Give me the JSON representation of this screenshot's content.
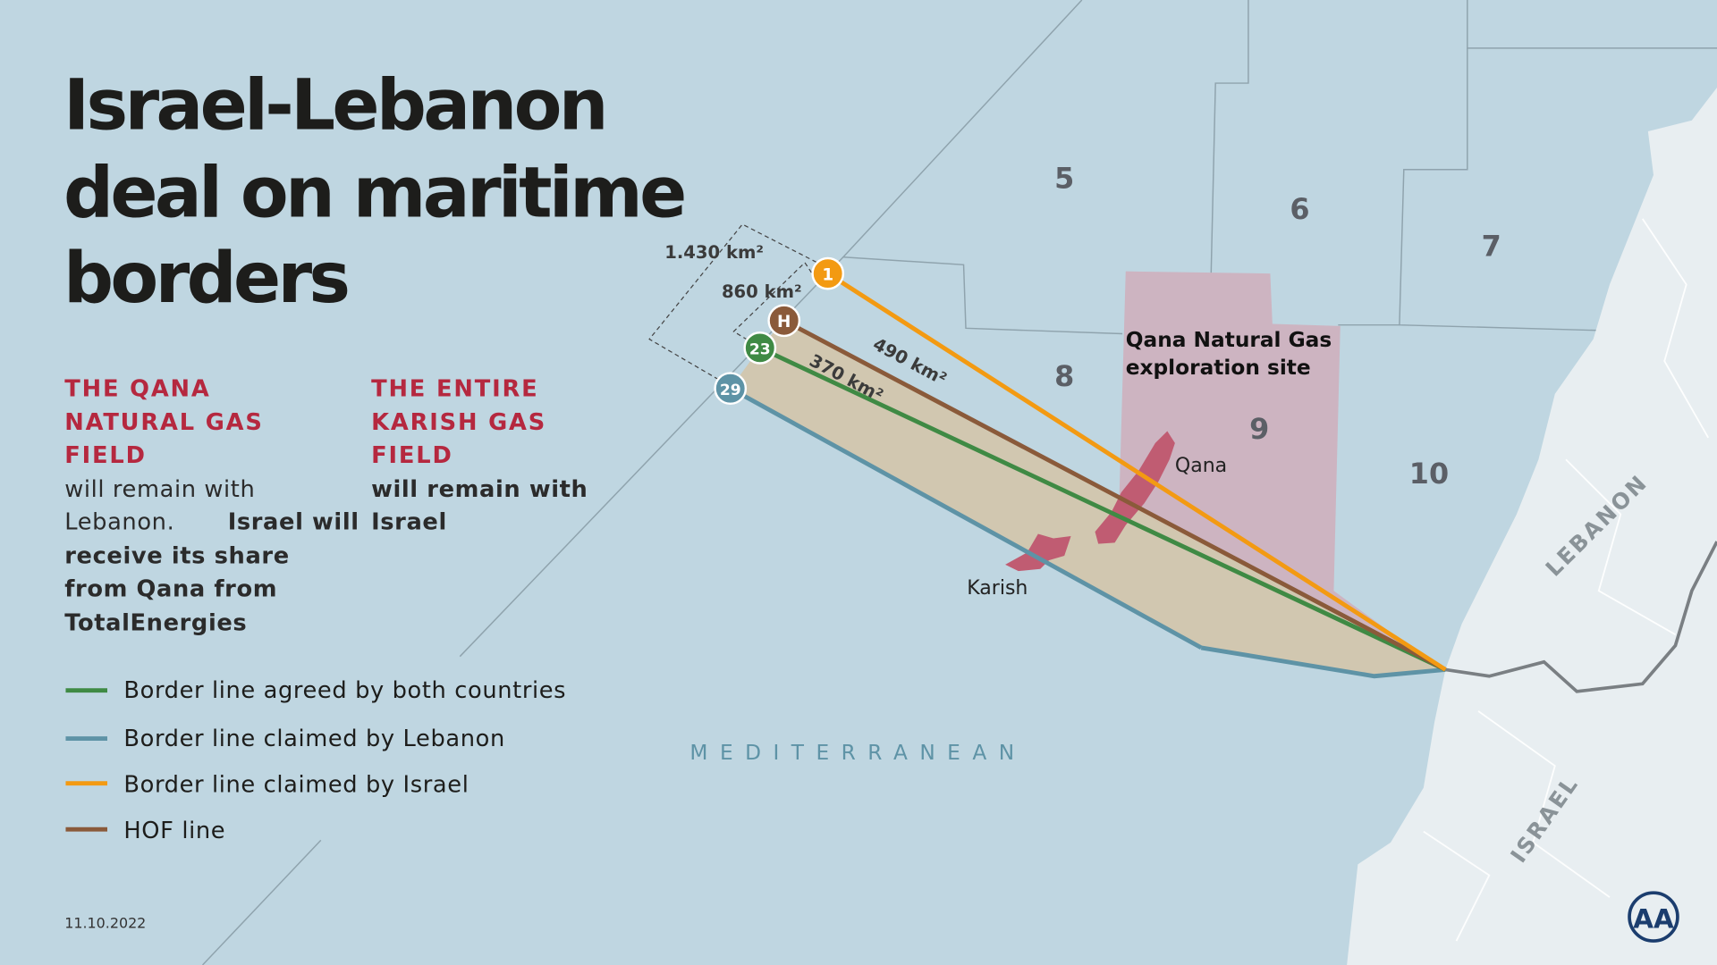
{
  "title": [
    "Israel-Lebanon",
    "deal on maritime",
    "borders"
  ],
  "qana_note": {
    "heading": [
      "THE QANA",
      "NATURAL GAS",
      "FIELD"
    ],
    "text": [
      "will remain with",
      "Lebanon."
    ],
    "text_bold": [
      "Israel will",
      "receive its share",
      "from Qana from",
      "TotalEnergies"
    ]
  },
  "karish_note": {
    "heading": [
      "THE ENTIRE",
      "KARISH GAS",
      "FIELD"
    ],
    "text_bold": [
      "will remain with",
      "Israel"
    ]
  },
  "legend": [
    {
      "label": "Border line agreed by both countries",
      "color": "#3f8a44"
    },
    {
      "label": "Border line claimed by Lebanon",
      "color": "#5e93a6"
    },
    {
      "label": "Border line claimed by Israel",
      "color": "#f39a12"
    },
    {
      "label": "HOF line",
      "color": "#8a5a3a"
    }
  ],
  "date": "11.10.2022",
  "map": {
    "sea_label": "MEDITERRANEAN",
    "country_labels": [
      "LEBANON",
      "ISRAEL"
    ],
    "blocks": [
      "5",
      "6",
      "7",
      "8",
      "9",
      "10"
    ],
    "exploration_site": [
      "Qana Natural Gas",
      "exploration site"
    ],
    "fields": [
      "Qana",
      "Karish"
    ],
    "points": [
      "1",
      "H",
      "23",
      "29"
    ],
    "areas": [
      "1.430 km²",
      "860 km²",
      "490 km²",
      "370 km²"
    ],
    "colors": {
      "sea": "#bfd6e1",
      "land": "#e8eef1",
      "site": "#cdb4c1",
      "disputed": "#d2c6ad",
      "field": "#c05c72"
    }
  },
  "logo": "AA"
}
